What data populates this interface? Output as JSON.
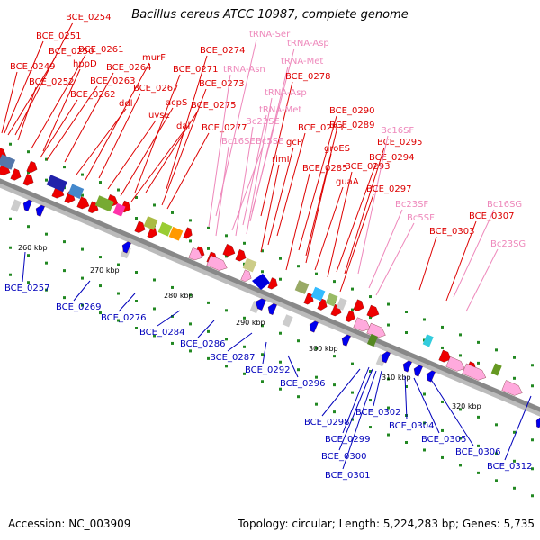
{
  "title": "Bacillus cereus ATCC 10987, complete genome",
  "accession": "Accession: NC_003909",
  "topology": "Topology: circular; Length: 5,224,283 bp; Genes: 5,735",
  "colors": {
    "red": "#dd0000",
    "pink": "#ee88bb",
    "blue": "#0000bb",
    "backbone": "#888888",
    "tick": "#228822"
  },
  "scale_ticks": [
    "260 kbp",
    "270 kbp",
    "280 kbp",
    "290 kbp",
    "300 kbp",
    "310 kbp",
    "320 kbp"
  ],
  "top_labels": [
    {
      "t": "BCE_0254",
      "c": "red"
    },
    {
      "t": "BCE_0251",
      "c": "red"
    },
    {
      "t": "BCE_0250",
      "c": "red"
    },
    {
      "t": "BCE_0261",
      "c": "red"
    },
    {
      "t": "hppD",
      "c": "red"
    },
    {
      "t": "BCE_0249",
      "c": "red"
    },
    {
      "t": "BCE_0252",
      "c": "red"
    },
    {
      "t": "BCE_0262",
      "c": "red"
    },
    {
      "t": "BCE_0263",
      "c": "red"
    },
    {
      "t": "BCE_0264",
      "c": "red"
    },
    {
      "t": "murF",
      "c": "red"
    },
    {
      "t": "ddl",
      "c": "red"
    },
    {
      "t": "BCE_0267",
      "c": "red"
    },
    {
      "t": "uvsE",
      "c": "red"
    },
    {
      "t": "acpS",
      "c": "red"
    },
    {
      "t": "dal",
      "c": "red"
    },
    {
      "t": "BCE_0271",
      "c": "red"
    },
    {
      "t": "BCE_0273",
      "c": "red"
    },
    {
      "t": "BCE_0275",
      "c": "red"
    },
    {
      "t": "BCE_0274",
      "c": "red"
    },
    {
      "t": "BCE_0277",
      "c": "red"
    },
    {
      "t": "tRNA-Ser",
      "c": "pink"
    },
    {
      "t": "tRNA-Asp",
      "c": "pink"
    },
    {
      "t": "tRNA-Asn",
      "c": "pink"
    },
    {
      "t": "tRNA-Met",
      "c": "pink"
    },
    {
      "t": "BCE_0278",
      "c": "red"
    },
    {
      "t": "tRNA-Asp",
      "c": "pink"
    },
    {
      "t": "tRNA-Met",
      "c": "pink"
    },
    {
      "t": "Bc23SE",
      "c": "pink"
    },
    {
      "t": "Bc16SE",
      "c": "pink"
    },
    {
      "t": "Bc5SE",
      "c": "pink"
    },
    {
      "t": "BCE_0283",
      "c": "red"
    },
    {
      "t": "gcP",
      "c": "red"
    },
    {
      "t": "rimI",
      "c": "red"
    },
    {
      "t": "BCE_0285",
      "c": "red"
    },
    {
      "t": "BCE_0290",
      "c": "red"
    },
    {
      "t": "BCE_0289",
      "c": "red"
    },
    {
      "t": "groES",
      "c": "red"
    },
    {
      "t": "guaA",
      "c": "red"
    },
    {
      "t": "BCE_0293",
      "c": "red"
    },
    {
      "t": "BCE_0294",
      "c": "red"
    },
    {
      "t": "BCE_0295",
      "c": "red"
    },
    {
      "t": "Bc16SF",
      "c": "pink"
    },
    {
      "t": "BCE_0297",
      "c": "red"
    },
    {
      "t": "Bc23SF",
      "c": "pink"
    },
    {
      "t": "Bc5SF",
      "c": "pink"
    },
    {
      "t": "Bc16SG",
      "c": "pink"
    },
    {
      "t": "BCE_0307",
      "c": "red"
    },
    {
      "t": "BCE_0303",
      "c": "red"
    },
    {
      "t": "Bc23SG",
      "c": "pink"
    }
  ],
  "bottom_labels": [
    "BCE_0257",
    "BCE_0269",
    "BCE_0276",
    "BCE_0284",
    "BCE_0286",
    "BCE_0287",
    "BCE_0292",
    "BCE_0296",
    "BCE_0298",
    "BCE_0302",
    "BCE_0299",
    "BCE_0300",
    "BCE_0301",
    "BCE_0304",
    "BCE_0305",
    "BCE_0306",
    "BCE_0312"
  ]
}
